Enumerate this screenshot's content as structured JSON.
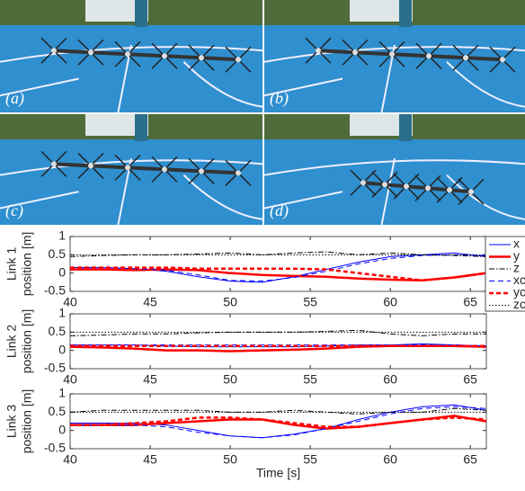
{
  "photos": [
    {
      "label": "(a)"
    },
    {
      "label": "(b)"
    },
    {
      "label": "(c)"
    },
    {
      "label": "(d)"
    }
  ],
  "chart_data": [
    {
      "type": "line",
      "ylabel": [
        "Link 1",
        "position [m]"
      ],
      "x": [
        40,
        42,
        44,
        46,
        48,
        50,
        52,
        54,
        56,
        58,
        60,
        62,
        64,
        66
      ],
      "xlim": [
        40,
        66
      ],
      "xticks": [
        40,
        45,
        50,
        55,
        60,
        65
      ],
      "ylim": [
        -0.5,
        1
      ],
      "yticks": [
        -0.5,
        0,
        0.5,
        1
      ],
      "series": [
        {
          "name": "x",
          "color": "#0000ff",
          "values": [
            0.15,
            0.15,
            0.12,
            0.05,
            -0.1,
            -0.22,
            -0.25,
            -0.1,
            0.1,
            0.3,
            0.45,
            0.5,
            0.55,
            0.45
          ]
        },
        {
          "name": "y",
          "color": "#ff0000",
          "values": [
            0.1,
            0.1,
            0.08,
            0.1,
            0.08,
            0.0,
            -0.05,
            -0.08,
            -0.1,
            -0.15,
            -0.18,
            -0.2,
            -0.12,
            0.0
          ]
        },
        {
          "name": "z",
          "color": "#000000",
          "values": [
            0.45,
            0.48,
            0.5,
            0.5,
            0.52,
            0.55,
            0.5,
            0.55,
            0.58,
            0.5,
            0.55,
            0.5,
            0.48,
            0.45
          ]
        },
        {
          "name": "xc",
          "color": "#0000ff",
          "values": [
            0.15,
            0.15,
            0.12,
            0.08,
            -0.05,
            -0.2,
            -0.22,
            -0.12,
            0.05,
            0.25,
            0.4,
            0.48,
            0.5,
            0.48
          ]
        },
        {
          "name": "yc",
          "color": "#ff0000",
          "values": [
            0.15,
            0.15,
            0.15,
            0.15,
            0.12,
            0.12,
            0.12,
            0.12,
            0.1,
            0.0,
            -0.1,
            -0.2,
            -0.12,
            0.0
          ]
        },
        {
          "name": "zc",
          "color": "#000000",
          "values": [
            0.5,
            0.5,
            0.5,
            0.5,
            0.5,
            0.5,
            0.5,
            0.5,
            0.5,
            0.5,
            0.5,
            0.5,
            0.5,
            0.5
          ]
        }
      ]
    },
    {
      "type": "line",
      "ylabel": [
        "Link 2",
        "position [m]"
      ],
      "x": [
        40,
        42,
        44,
        46,
        48,
        50,
        52,
        54,
        56,
        58,
        60,
        62,
        64,
        66
      ],
      "xlim": [
        40,
        66
      ],
      "xticks": [
        40,
        45,
        50,
        55,
        60,
        65
      ],
      "ylim": [
        -0.5,
        1
      ],
      "yticks": [
        -0.5,
        0,
        0.5,
        1
      ],
      "series": [
        {
          "color": "#0000ff",
          "values": [
            0.15,
            0.15,
            0.15,
            0.12,
            0.1,
            0.1,
            0.1,
            0.1,
            0.12,
            0.15,
            0.15,
            0.18,
            0.15,
            0.12
          ]
        },
        {
          "color": "#ff0000",
          "values": [
            0.1,
            0.08,
            0.05,
            0.0,
            0.0,
            -0.02,
            0.0,
            0.02,
            0.05,
            0.1,
            0.12,
            0.12,
            0.12,
            0.1
          ]
        },
        {
          "color": "#000000",
          "values": [
            0.4,
            0.42,
            0.45,
            0.45,
            0.48,
            0.5,
            0.5,
            0.5,
            0.52,
            0.55,
            0.45,
            0.4,
            0.45,
            0.45
          ]
        },
        {
          "color": "#0000ff",
          "values": [
            0.15,
            0.15,
            0.15,
            0.15,
            0.15,
            0.15,
            0.15,
            0.15,
            0.15,
            0.15,
            0.15,
            0.15,
            0.15,
            0.12
          ]
        },
        {
          "color": "#ff0000",
          "values": [
            0.12,
            0.12,
            0.12,
            0.12,
            0.12,
            0.12,
            0.12,
            0.12,
            0.12,
            0.12,
            0.12,
            0.12,
            0.12,
            0.12
          ]
        },
        {
          "color": "#000000",
          "values": [
            0.5,
            0.5,
            0.5,
            0.5,
            0.5,
            0.5,
            0.5,
            0.5,
            0.5,
            0.5,
            0.5,
            0.5,
            0.5,
            0.5
          ]
        }
      ]
    },
    {
      "type": "line",
      "ylabel": [
        "Link 3",
        "position [m]"
      ],
      "xlabel": "Time [s]",
      "x": [
        40,
        42,
        44,
        46,
        48,
        50,
        52,
        54,
        56,
        58,
        60,
        62,
        64,
        66
      ],
      "xlim": [
        40,
        66
      ],
      "xticks": [
        40,
        45,
        50,
        55,
        60,
        65
      ],
      "ylim": [
        -0.5,
        1
      ],
      "yticks": [
        -0.5,
        0,
        0.5,
        1
      ],
      "series": [
        {
          "color": "#0000ff",
          "values": [
            0.2,
            0.2,
            0.2,
            0.15,
            0.0,
            -0.15,
            -0.2,
            -0.1,
            0.05,
            0.3,
            0.5,
            0.65,
            0.7,
            0.55
          ]
        },
        {
          "color": "#ff0000",
          "values": [
            0.15,
            0.15,
            0.15,
            0.2,
            0.25,
            0.3,
            0.3,
            0.15,
            0.05,
            0.1,
            0.2,
            0.3,
            0.4,
            0.25
          ]
        },
        {
          "color": "#000000",
          "values": [
            0.5,
            0.55,
            0.55,
            0.55,
            0.55,
            0.5,
            0.5,
            0.55,
            0.5,
            0.45,
            0.5,
            0.5,
            0.6,
            0.55
          ]
        },
        {
          "color": "#0000ff",
          "values": [
            0.15,
            0.15,
            0.15,
            0.1,
            -0.05,
            -0.15,
            -0.2,
            -0.12,
            0.05,
            0.25,
            0.45,
            0.6,
            0.65,
            0.6
          ]
        },
        {
          "color": "#ff0000",
          "values": [
            0.15,
            0.15,
            0.2,
            0.25,
            0.35,
            0.35,
            0.3,
            0.2,
            0.1,
            0.1,
            0.2,
            0.3,
            0.35,
            0.3
          ]
        },
        {
          "color": "#000000",
          "values": [
            0.5,
            0.5,
            0.5,
            0.5,
            0.5,
            0.5,
            0.5,
            0.5,
            0.5,
            0.5,
            0.5,
            0.5,
            0.5,
            0.5
          ]
        }
      ]
    }
  ]
}
